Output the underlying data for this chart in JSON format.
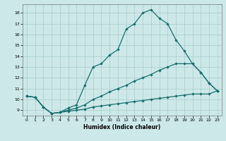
{
  "xlabel": "Humidex (Indice chaleur)",
  "bg_color": "#cce8e8",
  "grid_color": "#aacccc",
  "line_color": "#1a6e6e",
  "xlim": [
    -0.5,
    23.5
  ],
  "ylim": [
    8.5,
    18.8
  ],
  "yticks": [
    9,
    10,
    11,
    12,
    13,
    14,
    15,
    16,
    17,
    18
  ],
  "xticks": [
    0,
    1,
    2,
    3,
    4,
    5,
    6,
    7,
    8,
    9,
    10,
    11,
    12,
    13,
    14,
    15,
    16,
    17,
    18,
    19,
    20,
    21,
    22,
    23
  ],
  "line1_x": [
    0,
    1,
    2,
    3,
    4,
    5,
    6,
    7,
    8,
    9,
    10,
    11,
    12,
    13,
    14,
    15,
    16,
    17,
    18,
    19,
    20,
    21,
    22,
    23
  ],
  "line1_y": [
    10.3,
    10.2,
    9.3,
    8.7,
    8.8,
    9.2,
    9.5,
    11.3,
    13.0,
    13.3,
    14.1,
    14.6,
    16.5,
    17.0,
    18.0,
    18.3,
    17.5,
    17.0,
    15.5,
    14.5,
    13.3,
    12.5,
    11.5,
    10.8
  ],
  "line2_x": [
    0,
    1,
    2,
    3,
    4,
    5,
    6,
    7,
    8,
    9,
    10,
    11,
    12,
    13,
    14,
    15,
    16,
    17,
    18,
    19,
    20,
    21,
    22,
    23
  ],
  "line2_y": [
    10.3,
    10.2,
    9.3,
    8.7,
    8.8,
    9.0,
    9.2,
    9.5,
    10.0,
    10.3,
    10.7,
    11.0,
    11.3,
    11.7,
    12.0,
    12.3,
    12.7,
    13.0,
    13.3,
    13.3,
    13.3,
    12.5,
    11.5,
    10.8
  ],
  "line3_x": [
    0,
    1,
    2,
    3,
    4,
    5,
    6,
    7,
    8,
    9,
    10,
    11,
    12,
    13,
    14,
    15,
    16,
    17,
    18,
    19,
    20,
    21,
    22,
    23
  ],
  "line3_y": [
    10.3,
    10.2,
    9.3,
    8.7,
    8.8,
    8.9,
    9.0,
    9.1,
    9.3,
    9.4,
    9.5,
    9.6,
    9.7,
    9.8,
    9.9,
    10.0,
    10.1,
    10.2,
    10.3,
    10.4,
    10.5,
    10.5,
    10.5,
    10.8
  ]
}
